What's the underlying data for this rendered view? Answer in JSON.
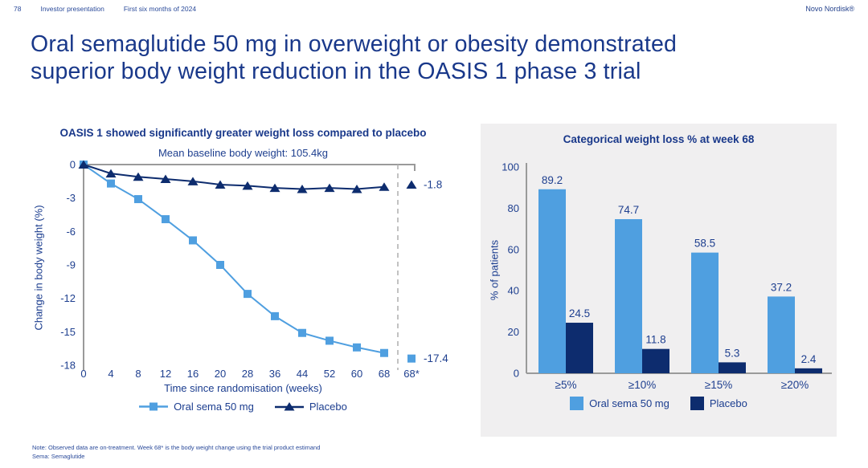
{
  "header": {
    "page_number": "78",
    "presentation": "Investor presentation",
    "period": "First six months of 2024",
    "brand": "Novo Nordisk®"
  },
  "title_lines": [
    "Oral semaglutide 50 mg in overweight or obesity demonstrated",
    "superior body weight reduction in the OASIS 1 phase 3 trial"
  ],
  "footnotes": [
    "Note: Observed data are on-treatment. Week 68* is the body weight change using the trial product estimand",
    "Sema: Semaglutide"
  ],
  "colors": {
    "navy_text": "#1b3d8f",
    "sema_blue": "#4f9fe0",
    "placebo_navy": "#0d2c6e",
    "axis_gray": "#9a9a9a",
    "dashed_gray": "#b3b3b3",
    "panel_bg": "#f0eff0"
  },
  "chart_data": [
    {
      "type": "line",
      "title": "OASIS 1 showed significantly greater weight loss compared to placebo",
      "subtitle": "Mean baseline body weight: 105.4kg",
      "xlabel": "Time since randomisation (weeks)",
      "ylabel": "Change in body weight (%)",
      "x_ticks": [
        "0",
        "4",
        "8",
        "12",
        "16",
        "20",
        "28",
        "36",
        "44",
        "52",
        "60",
        "68",
        "68*"
      ],
      "y_ticks": [
        0,
        -3,
        -6,
        -9,
        -12,
        -15,
        -18
      ],
      "ylim": [
        -18,
        0
      ],
      "grid": false,
      "legend_position": "bottom",
      "estimand_note": "dashed divider separates week 68 observed data from week 68* trial product estimand",
      "series": [
        {
          "name": "Oral sema 50 mg",
          "marker": "square",
          "color": "#4f9fe0",
          "values": [
            0,
            -1.7,
            -3.1,
            -4.9,
            -6.8,
            -9.0,
            -11.6,
            -13.6,
            -15.1,
            -15.8,
            -16.4,
            -16.9
          ],
          "estimand_value": -17.4,
          "estimand_label": "-17.4"
        },
        {
          "name": "Placebo",
          "marker": "triangle",
          "color": "#0d2c6e",
          "values": [
            0,
            -0.8,
            -1.1,
            -1.3,
            -1.5,
            -1.8,
            -1.9,
            -2.1,
            -2.2,
            -2.1,
            -2.2,
            -2.0
          ],
          "estimand_value": -1.8,
          "estimand_label": "-1.8"
        }
      ]
    },
    {
      "type": "bar",
      "title": "Categorical weight loss % at week 68",
      "xlabel": "",
      "ylabel": "% of patients",
      "categories": [
        "≥5%",
        "≥10%",
        "≥15%",
        "≥20%"
      ],
      "y_ticks": [
        0,
        20,
        40,
        60,
        80,
        100
      ],
      "ylim": [
        0,
        100
      ],
      "grid": false,
      "legend_position": "bottom",
      "series": [
        {
          "name": "Oral sema 50 mg",
          "color": "#4f9fe0",
          "values": [
            89.2,
            74.7,
            58.5,
            37.2
          ]
        },
        {
          "name": "Placebo",
          "color": "#0d2c6e",
          "values": [
            24.5,
            11.8,
            5.3,
            2.4
          ]
        }
      ]
    }
  ]
}
